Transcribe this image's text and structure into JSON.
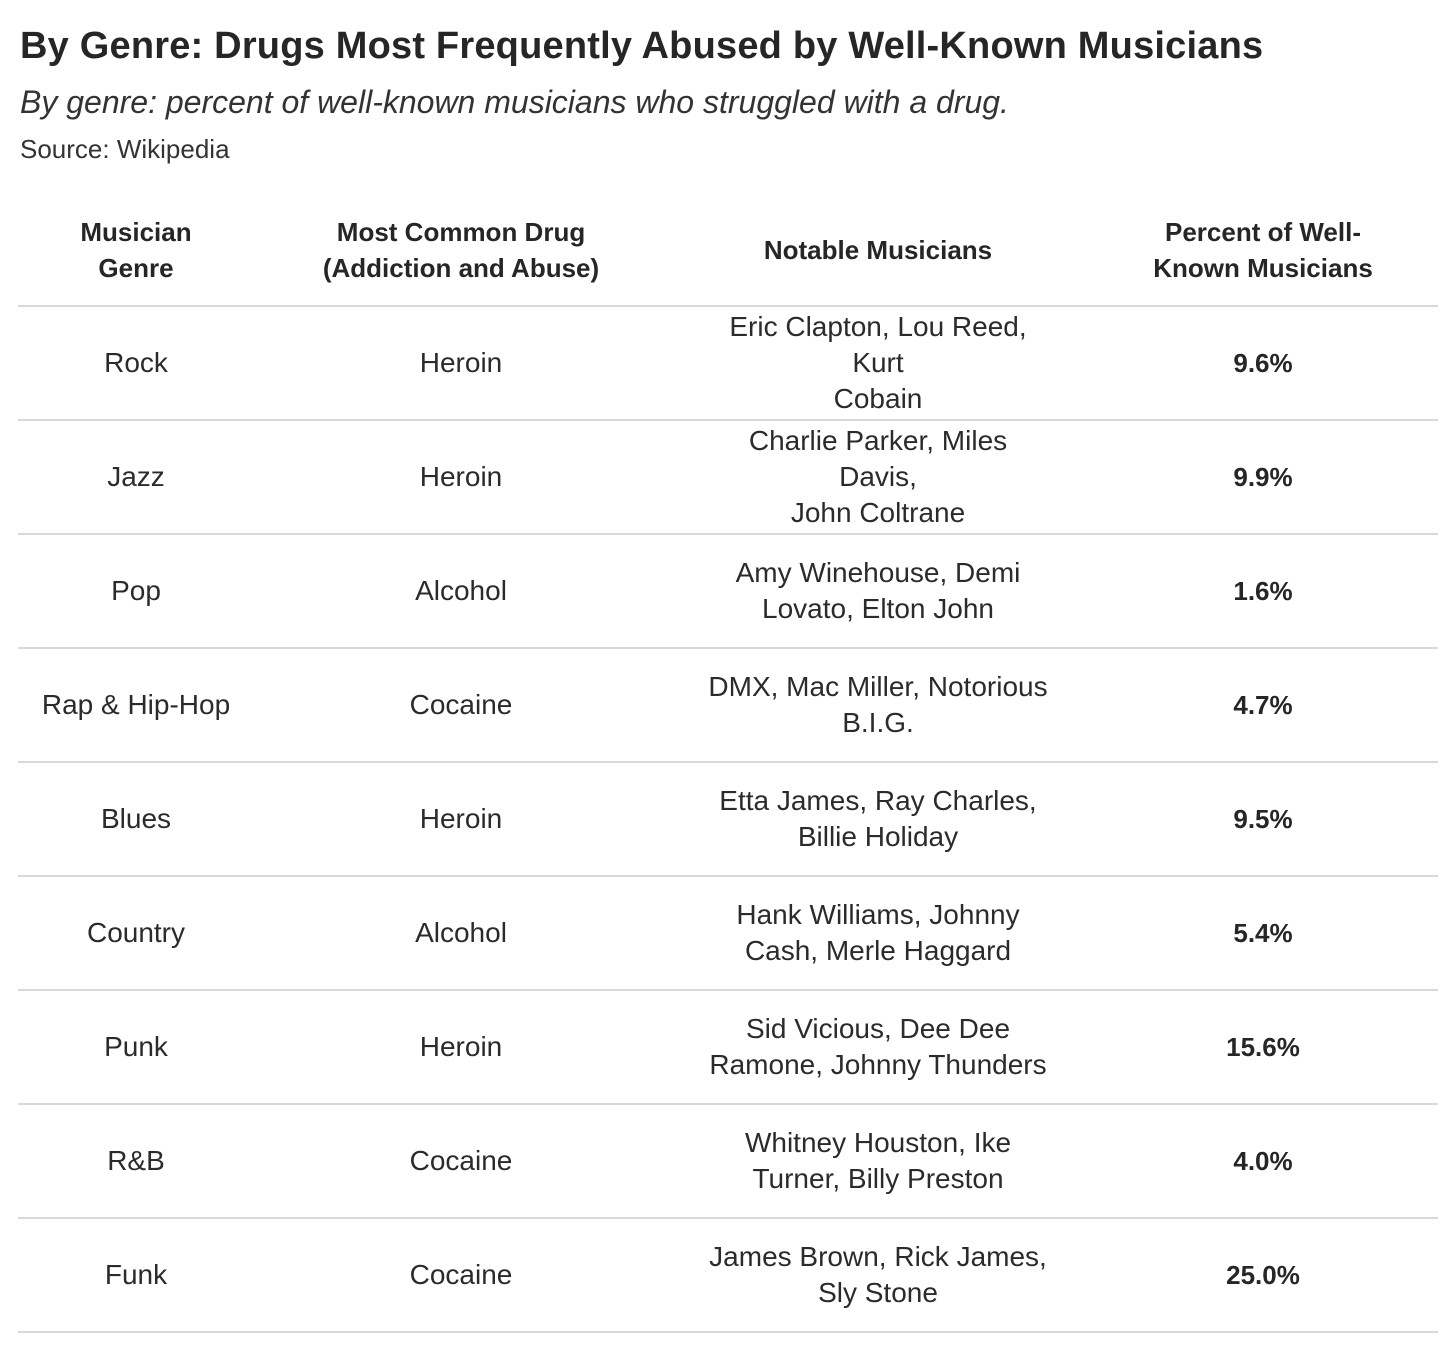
{
  "title": "By Genre: Drugs Most Frequently Abused by Well-Known Musicians",
  "subtitle": "By genre: percent of well-known musicians who struggled with a drug.",
  "source": "Source: Wikipedia",
  "table": {
    "headers": {
      "genre": [
        "Musician",
        "Genre"
      ],
      "drug": [
        "Most Common Drug",
        "(Addiction and Abuse)"
      ],
      "musicians": [
        "Notable Musicians"
      ],
      "percent": [
        "Percent of Well-",
        "Known Musicians"
      ]
    }
  },
  "chart_data": {
    "type": "table",
    "title": "By Genre: Drugs Most Frequently Abused by Well-Known Musicians",
    "subtitle": "By genre: percent of well-known musicians who struggled with a drug.",
    "source": "Source: Wikipedia",
    "columns": [
      "Musician Genre",
      "Most Common Drug (Addiction and Abuse)",
      "Notable Musicians",
      "Percent of Well-Known Musicians"
    ],
    "rows": [
      {
        "genre": "Rock",
        "drug": "Heroin",
        "musicians": [
          "Eric Clapton, Lou Reed, Kurt",
          "Cobain"
        ],
        "percent": "9.6%",
        "value": 9.6
      },
      {
        "genre": "Jazz",
        "drug": "Heroin",
        "musicians": [
          "Charlie Parker, Miles Davis,",
          "John Coltrane"
        ],
        "percent": "9.9%",
        "value": 9.9
      },
      {
        "genre": "Pop",
        "drug": "Alcohol",
        "musicians": [
          "Amy Winehouse, Demi",
          "Lovato, Elton John"
        ],
        "percent": "1.6%",
        "value": 1.6
      },
      {
        "genre": "Rap & Hip-Hop",
        "drug": "Cocaine",
        "musicians": [
          "DMX, Mac Miller, Notorious",
          "B.I.G."
        ],
        "percent": "4.7%",
        "value": 4.7
      },
      {
        "genre": "Blues",
        "drug": "Heroin",
        "musicians": [
          "Etta James, Ray Charles,",
          "Billie Holiday"
        ],
        "percent": "9.5%",
        "value": 9.5
      },
      {
        "genre": "Country",
        "drug": "Alcohol",
        "musicians": [
          "Hank Williams, Johnny",
          "Cash, Merle Haggard"
        ],
        "percent": "5.4%",
        "value": 5.4
      },
      {
        "genre": "Punk",
        "drug": "Heroin",
        "musicians": [
          "Sid Vicious, Dee Dee",
          "Ramone, Johnny Thunders"
        ],
        "percent": "15.6%",
        "value": 15.6
      },
      {
        "genre": "R&B",
        "drug": "Cocaine",
        "musicians": [
          "Whitney Houston, Ike",
          "Turner, Billy Preston"
        ],
        "percent": "4.0%",
        "value": 4.0
      },
      {
        "genre": "Funk",
        "drug": "Cocaine",
        "musicians": [
          "James Brown, Rick James,",
          "Sly Stone"
        ],
        "percent": "25.0%",
        "value": 25.0
      }
    ]
  }
}
